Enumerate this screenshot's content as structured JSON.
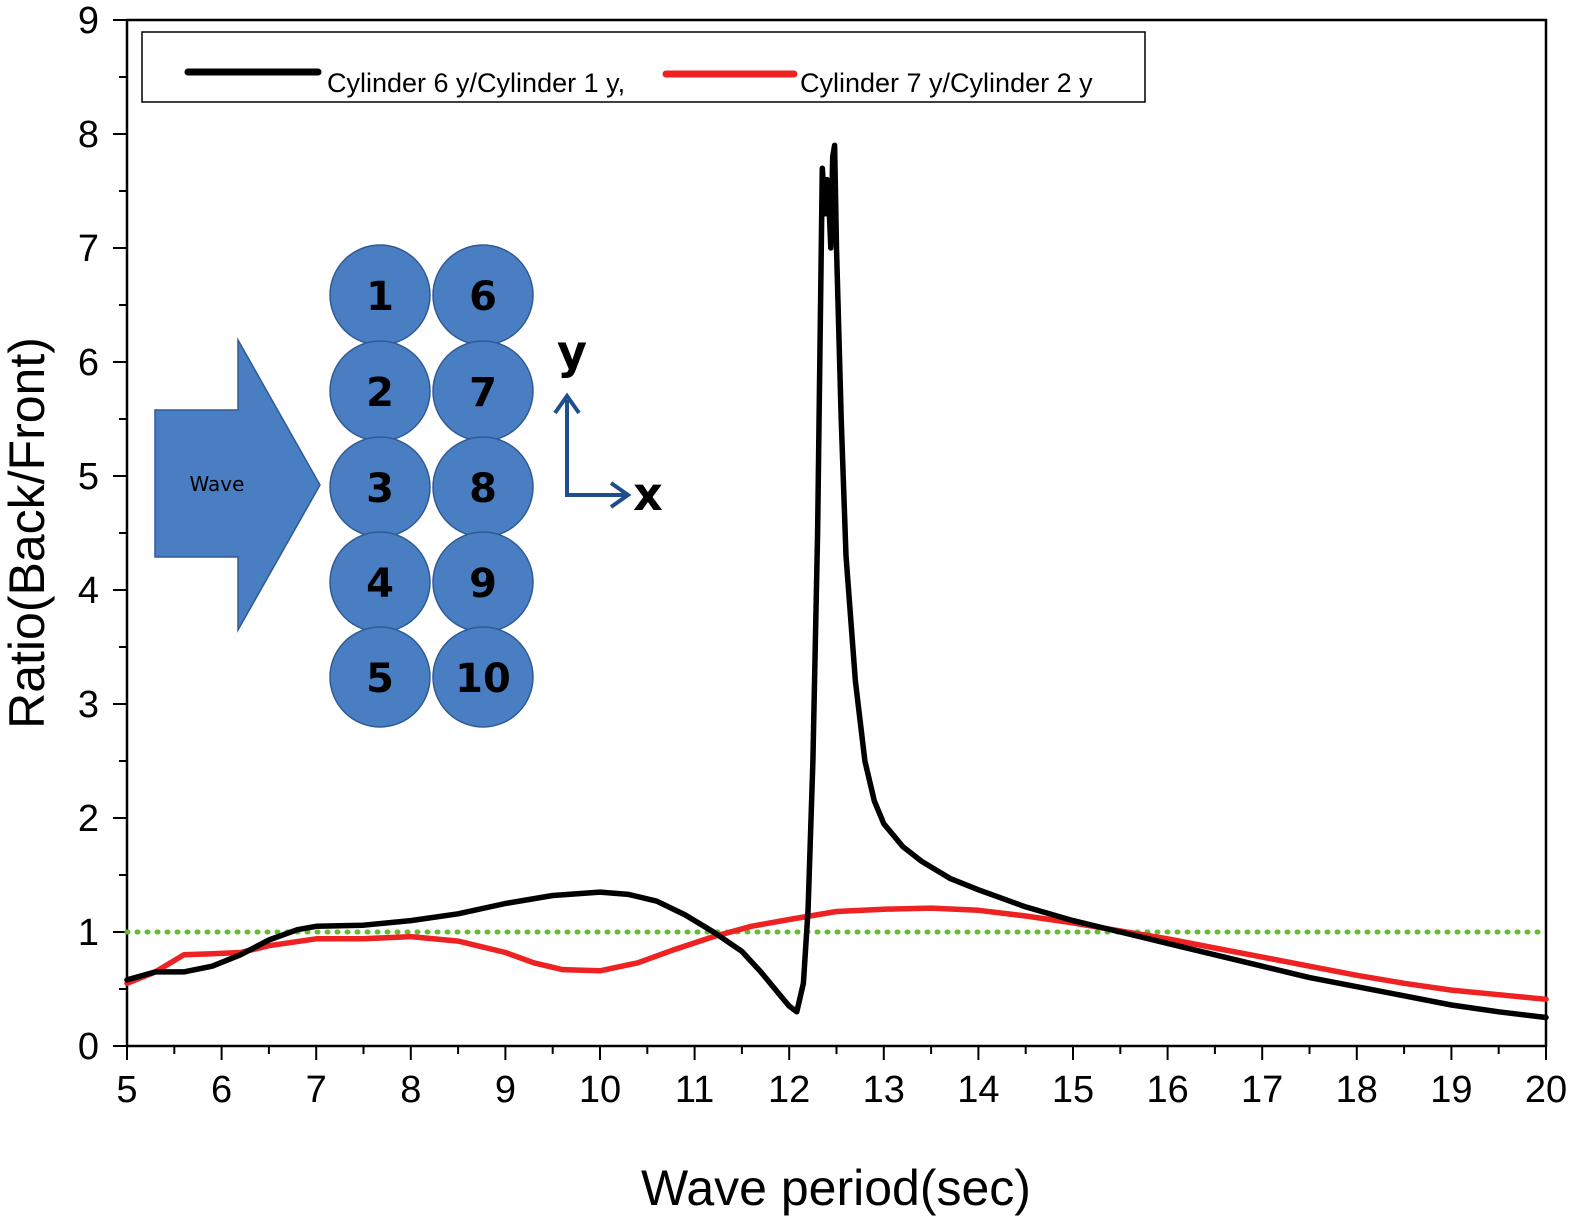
{
  "chart_data": {
    "type": "line",
    "title": "",
    "xlabel": "Wave period(sec)",
    "ylabel": "Ratio(Back/Front)",
    "xlim": [
      5,
      20
    ],
    "ylim": [
      0,
      9
    ],
    "xticks": [
      5,
      6,
      7,
      8,
      9,
      10,
      11,
      12,
      13,
      14,
      15,
      16,
      17,
      18,
      19,
      20
    ],
    "yticks": [
      0,
      1,
      2,
      3,
      4,
      5,
      6,
      7,
      8,
      9
    ],
    "grid": false,
    "legend_position": "top",
    "reference_line": {
      "y": 1,
      "style": "dotted",
      "color": "#66bb33"
    },
    "series": [
      {
        "name": "Cylinder 6 y/Cylinder 1 y,",
        "color": "#000000",
        "x": [
          5.0,
          5.3,
          5.6,
          5.9,
          6.2,
          6.5,
          6.8,
          7.0,
          7.5,
          8.0,
          8.5,
          9.0,
          9.5,
          10.0,
          10.3,
          10.6,
          10.9,
          11.2,
          11.5,
          11.7,
          11.9,
          12.0,
          12.08,
          12.15,
          12.2,
          12.25,
          12.3,
          12.35,
          12.38,
          12.4,
          12.42,
          12.44,
          12.46,
          12.48,
          12.5,
          12.55,
          12.6,
          12.7,
          12.8,
          12.9,
          13.0,
          13.2,
          13.4,
          13.7,
          14.0,
          14.5,
          15.0,
          15.5,
          16.0,
          16.5,
          17.0,
          17.5,
          18.0,
          18.5,
          19.0,
          19.5,
          20.0
        ],
        "y": [
          0.58,
          0.65,
          0.65,
          0.7,
          0.8,
          0.93,
          1.02,
          1.05,
          1.06,
          1.1,
          1.16,
          1.25,
          1.32,
          1.35,
          1.33,
          1.27,
          1.15,
          1.0,
          0.83,
          0.65,
          0.45,
          0.35,
          0.3,
          0.55,
          1.2,
          2.5,
          4.5,
          7.7,
          7.3,
          7.6,
          7.4,
          7.0,
          7.8,
          7.9,
          7.0,
          5.5,
          4.3,
          3.2,
          2.5,
          2.15,
          1.95,
          1.75,
          1.62,
          1.47,
          1.37,
          1.22,
          1.1,
          1.0,
          0.9,
          0.8,
          0.7,
          0.6,
          0.52,
          0.44,
          0.36,
          0.3,
          0.25
        ]
      },
      {
        "name": "Cylinder 7 y/Cylinder 2 y",
        "color": "#ee2222",
        "x": [
          5.0,
          5.3,
          5.6,
          5.9,
          6.2,
          6.5,
          7.0,
          7.5,
          8.0,
          8.5,
          9.0,
          9.3,
          9.6,
          10.0,
          10.4,
          10.8,
          11.2,
          11.6,
          12.0,
          12.5,
          13.0,
          13.5,
          14.0,
          14.5,
          15.0,
          15.5,
          16.0,
          16.5,
          17.0,
          17.5,
          18.0,
          18.5,
          19.0,
          19.5,
          20.0
        ],
        "y": [
          0.55,
          0.65,
          0.8,
          0.81,
          0.82,
          0.88,
          0.94,
          0.94,
          0.96,
          0.92,
          0.82,
          0.73,
          0.67,
          0.66,
          0.73,
          0.85,
          0.96,
          1.05,
          1.11,
          1.18,
          1.2,
          1.21,
          1.19,
          1.14,
          1.08,
          1.01,
          0.94,
          0.86,
          0.78,
          0.7,
          0.62,
          0.55,
          0.49,
          0.45,
          0.41
        ]
      }
    ]
  },
  "inset": {
    "wave_label": "Wave",
    "cylinders": [
      "1",
      "2",
      "3",
      "4",
      "5",
      "6",
      "7",
      "8",
      "9",
      "10"
    ],
    "axis_y": "y",
    "axis_x": "x",
    "cylinder_color": "#4a7ec2",
    "arrow_color": "#4a7ec2",
    "axes_arrow_color": "#1f4e8c"
  }
}
